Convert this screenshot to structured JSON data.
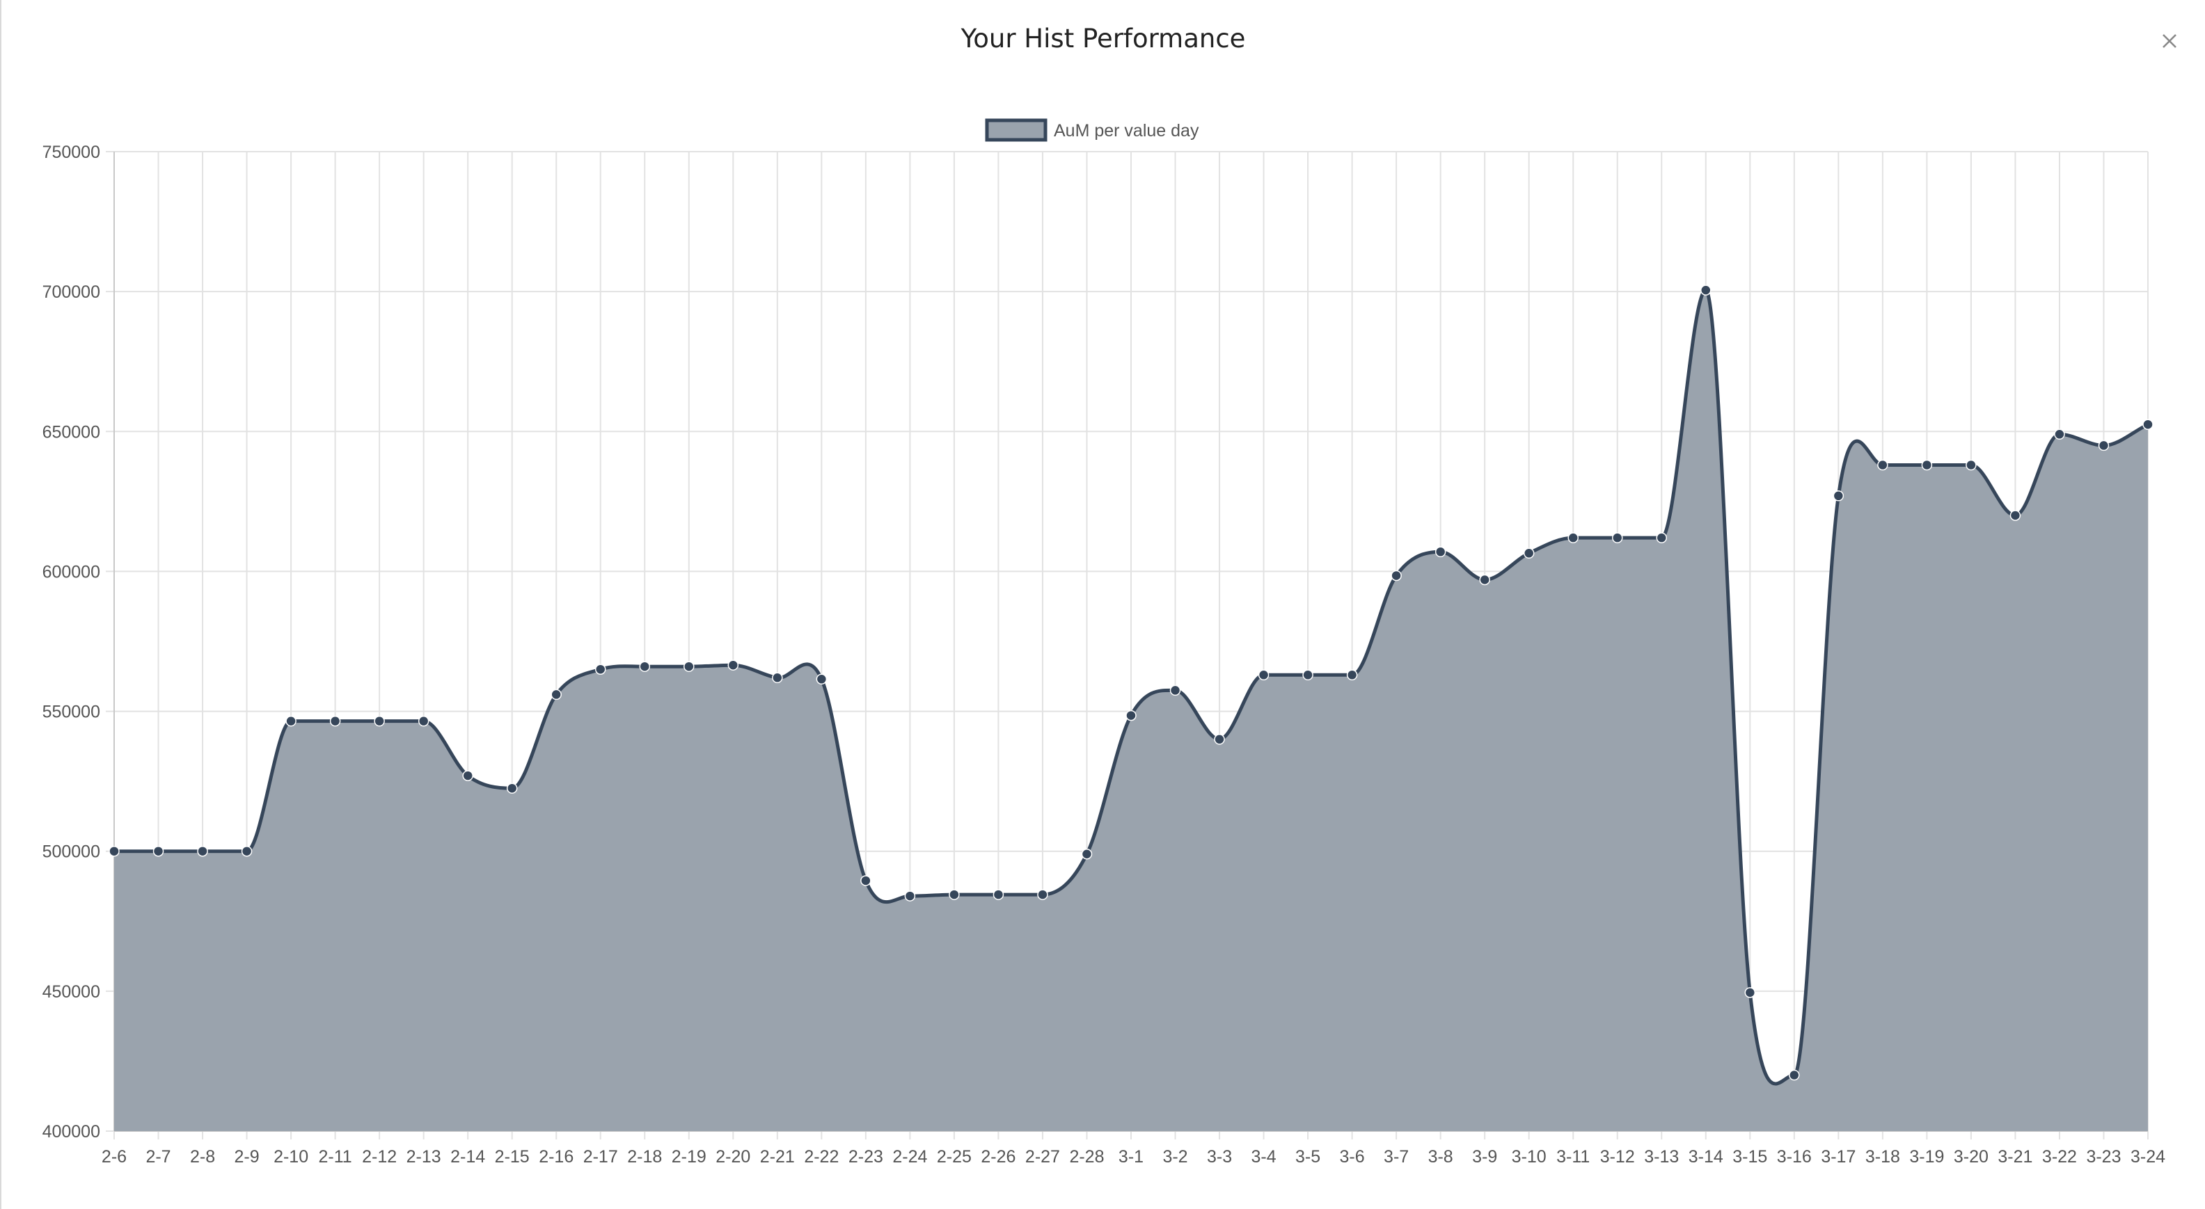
{
  "modal": {
    "title": "Your Hist Performance",
    "close_label": "×"
  },
  "colors": {
    "line": "#36465a",
    "fill": "#9aa3ad",
    "grid": "#e2e2e2",
    "axis_text": "#555555"
  },
  "chart_data": {
    "type": "area",
    "title": "",
    "xlabel": "",
    "ylabel": "",
    "ylim": [
      400000,
      750000
    ],
    "ytick_step": 50000,
    "grid": true,
    "legend_position": "top-center",
    "categories": [
      "2-6",
      "2-7",
      "2-8",
      "2-9",
      "2-10",
      "2-11",
      "2-12",
      "2-13",
      "2-14",
      "2-15",
      "2-16",
      "2-17",
      "2-18",
      "2-19",
      "2-20",
      "2-21",
      "2-22",
      "2-23",
      "2-24",
      "2-25",
      "2-26",
      "2-27",
      "2-28",
      "3-1",
      "3-2",
      "3-3",
      "3-4",
      "3-5",
      "3-6",
      "3-7",
      "3-8",
      "3-9",
      "3-10",
      "3-11",
      "3-12",
      "3-13",
      "3-14",
      "3-15",
      "3-16",
      "3-17",
      "3-18",
      "3-19",
      "3-20",
      "3-21",
      "3-22",
      "3-23",
      "3-24"
    ],
    "series": [
      {
        "name": "AuM per value day",
        "values": [
          500000,
          500000,
          500000,
          500000,
          546500,
          546500,
          546500,
          546500,
          527000,
          522500,
          556000,
          565000,
          566000,
          566000,
          566500,
          562000,
          561500,
          489500,
          484000,
          484500,
          484500,
          484500,
          499000,
          548500,
          557500,
          540000,
          563000,
          563000,
          563000,
          598500,
          607000,
          597000,
          606500,
          612000,
          612000,
          612000,
          700500,
          449500,
          420000,
          627000,
          638000,
          638000,
          638000,
          620000,
          649000,
          645000,
          652500
        ]
      }
    ]
  }
}
